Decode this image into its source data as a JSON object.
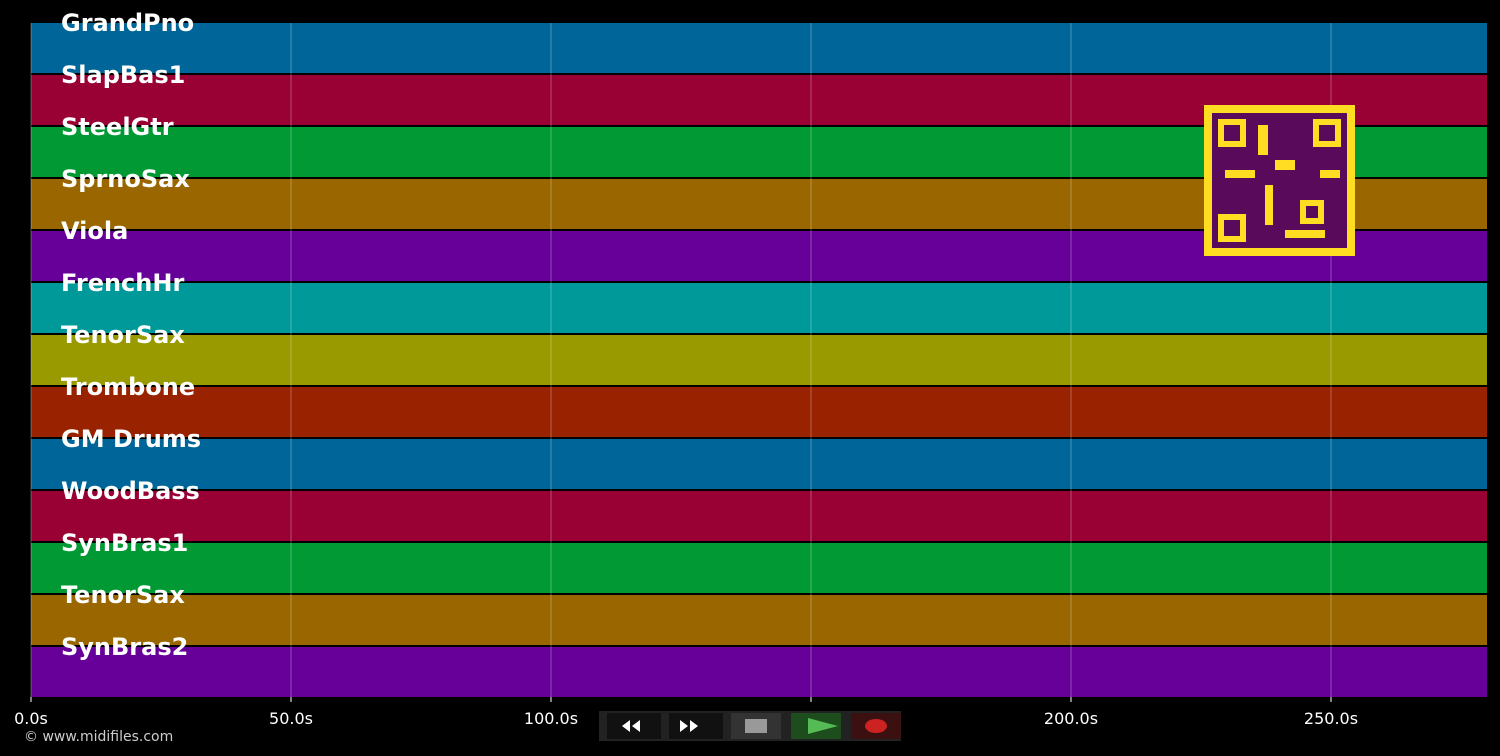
{
  "timeline": {
    "xlim": [
      0,
      280
    ],
    "xticks": [
      {
        "value": 0,
        "label": "0.0s"
      },
      {
        "value": 50,
        "label": "50.0s"
      },
      {
        "value": 100,
        "label": "100.0s"
      },
      {
        "value": 150,
        "label": "150.0s"
      },
      {
        "value": 200,
        "label": "200.0s"
      },
      {
        "value": 250,
        "label": "250.0s"
      }
    ],
    "grid": true
  },
  "tracks": [
    {
      "name": "GrandPno",
      "color": "#006699"
    },
    {
      "name": "SlapBas1",
      "color": "#990033"
    },
    {
      "name": "SteelGtr",
      "color": "#009933"
    },
    {
      "name": "SprnoSax",
      "color": "#996600"
    },
    {
      "name": "Viola",
      "color": "#660099"
    },
    {
      "name": "FrenchHr",
      "color": "#009999"
    },
    {
      "name": "TenorSax",
      "color": "#999900"
    },
    {
      "name": "Trombone",
      "color": "#992200"
    },
    {
      "name": "GM Drums",
      "color": "#006699"
    },
    {
      "name": "WoodBass",
      "color": "#990033"
    },
    {
      "name": "SynBras1",
      "color": "#009933"
    },
    {
      "name": "TenorSax",
      "color": "#996600"
    },
    {
      "name": "SynBras2",
      "color": "#660099"
    }
  ],
  "footer": {
    "copyright": "© www.midifiles.com"
  }
}
